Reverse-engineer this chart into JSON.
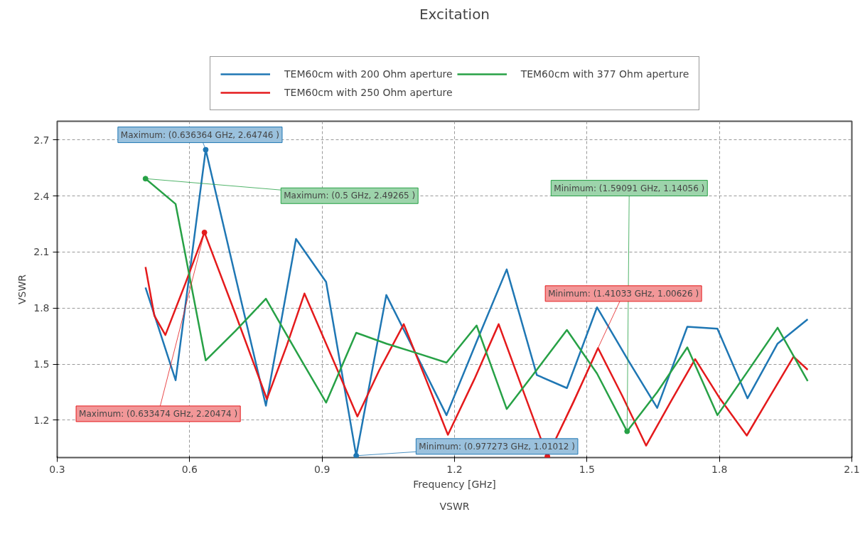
{
  "chart_data": {
    "type": "line",
    "title": "Excitation",
    "xlabel": "Frequency [GHz]",
    "ylabel": "VSWR",
    "xlim": [
      0.3,
      2.1
    ],
    "xticks": [
      {
        "value": 0.3,
        "label": "0.3"
      },
      {
        "value": 0.6,
        "label": "0.6"
      },
      {
        "value": 0.9,
        "label": "0.9"
      },
      {
        "value": 1.2,
        "label": "1.2"
      },
      {
        "value": 1.5,
        "label": "1.5"
      },
      {
        "value": 1.8,
        "label": "1.8"
      },
      {
        "value": 2.1,
        "label": "2.1"
      }
    ],
    "ylim": [
      1.0,
      2.8
    ],
    "yticks": [
      {
        "value": 1.2,
        "label": "1.2"
      },
      {
        "value": 1.5,
        "label": "1.5"
      },
      {
        "value": 1.8,
        "label": "1.8"
      },
      {
        "value": 2.1,
        "label": "2.1"
      },
      {
        "value": 2.4,
        "label": "2.4"
      },
      {
        "value": 2.7,
        "label": "2.7"
      }
    ],
    "grid": true,
    "legend": "top",
    "marker": "none",
    "line_style": "solid",
    "series": [
      {
        "name": "TEM60cm with 200 Ohm aperture",
        "color": "#1f77b4",
        "x": [
          0.5,
          0.568182,
          0.636364,
          0.704545,
          0.772727,
          0.840909,
          0.909091,
          0.977273,
          1.045455,
          1.113636,
          1.181818,
          1.25,
          1.318182,
          1.386364,
          1.454545,
          1.522727,
          1.590909,
          1.659091,
          1.727273,
          1.795455,
          1.863636,
          1.931818,
          2.0
        ],
        "values": [
          1.91,
          1.414,
          2.64746,
          1.96,
          1.278,
          2.17,
          1.94,
          1.01012,
          1.87,
          1.55,
          1.227,
          1.62,
          2.007,
          1.442,
          1.372,
          1.804,
          1.53,
          1.266,
          1.7,
          1.69,
          1.317,
          1.61,
          1.74
        ]
      },
      {
        "name": "TEM60cm with 250 Ohm aperture",
        "color": "#e41a1c",
        "x": [
          0.5,
          0.52,
          0.545,
          0.59,
          0.633474,
          0.705,
          0.775,
          0.82,
          0.86,
          0.92,
          0.98,
          1.03,
          1.085,
          1.135,
          1.185,
          1.245,
          1.3,
          1.355,
          1.41033,
          1.47,
          1.525,
          1.58,
          1.634,
          1.69,
          1.745,
          1.8,
          1.862,
          1.915,
          1.968,
          2.0
        ],
        "values": [
          2.02,
          1.76,
          1.656,
          1.93,
          2.20474,
          1.76,
          1.313,
          1.6,
          1.878,
          1.55,
          1.22,
          1.47,
          1.714,
          1.42,
          1.122,
          1.42,
          1.714,
          1.36,
          1.00626,
          1.3,
          1.586,
          1.33,
          1.064,
          1.3,
          1.527,
          1.32,
          1.118,
          1.33,
          1.54,
          1.47
        ]
      },
      {
        "name": "TEM60cm with 377 Ohm aperture",
        "color": "#27a146",
        "x": [
          0.5,
          0.568182,
          0.636364,
          0.704545,
          0.772727,
          0.840909,
          0.909091,
          0.977273,
          1.045455,
          1.113636,
          1.181818,
          1.25,
          1.318182,
          1.386364,
          1.454545,
          1.522727,
          1.590909,
          1.659091,
          1.727273,
          1.795455,
          1.863636,
          1.931818,
          2.0
        ],
        "values": [
          2.49265,
          2.357,
          1.52,
          1.68,
          1.85,
          1.57,
          1.294,
          1.668,
          1.61,
          1.56,
          1.508,
          1.707,
          1.26,
          1.47,
          1.683,
          1.45,
          1.14056,
          1.35,
          1.59,
          1.227,
          1.46,
          1.695,
          1.41
        ]
      }
    ],
    "annotations": [
      {
        "text": "Maximum: (0.636364 GHz, 2.64746 )",
        "x": 0.636364,
        "y": 2.64746
      },
      {
        "text": "Maximum: (0.5 GHz, 2.49265 )",
        "x": 0.5,
        "y": 2.49265
      },
      {
        "text": "Maximum: (0.633474 GHz, 2.20474 )",
        "x": 0.633474,
        "y": 2.20474
      },
      {
        "text": "Minimum: (0.977273 GHz, 1.01012 )",
        "x": 0.977273,
        "y": 1.01012
      },
      {
        "text": "Minimum: (1.59091 GHz, 1.14056 )",
        "x": 1.59091,
        "y": 1.14056
      },
      {
        "text": "Minimum: (1.41033 GHz, 1.00626 )",
        "x": 1.41033,
        "y": 1.00626
      },
      "VSWR"
    ]
  }
}
